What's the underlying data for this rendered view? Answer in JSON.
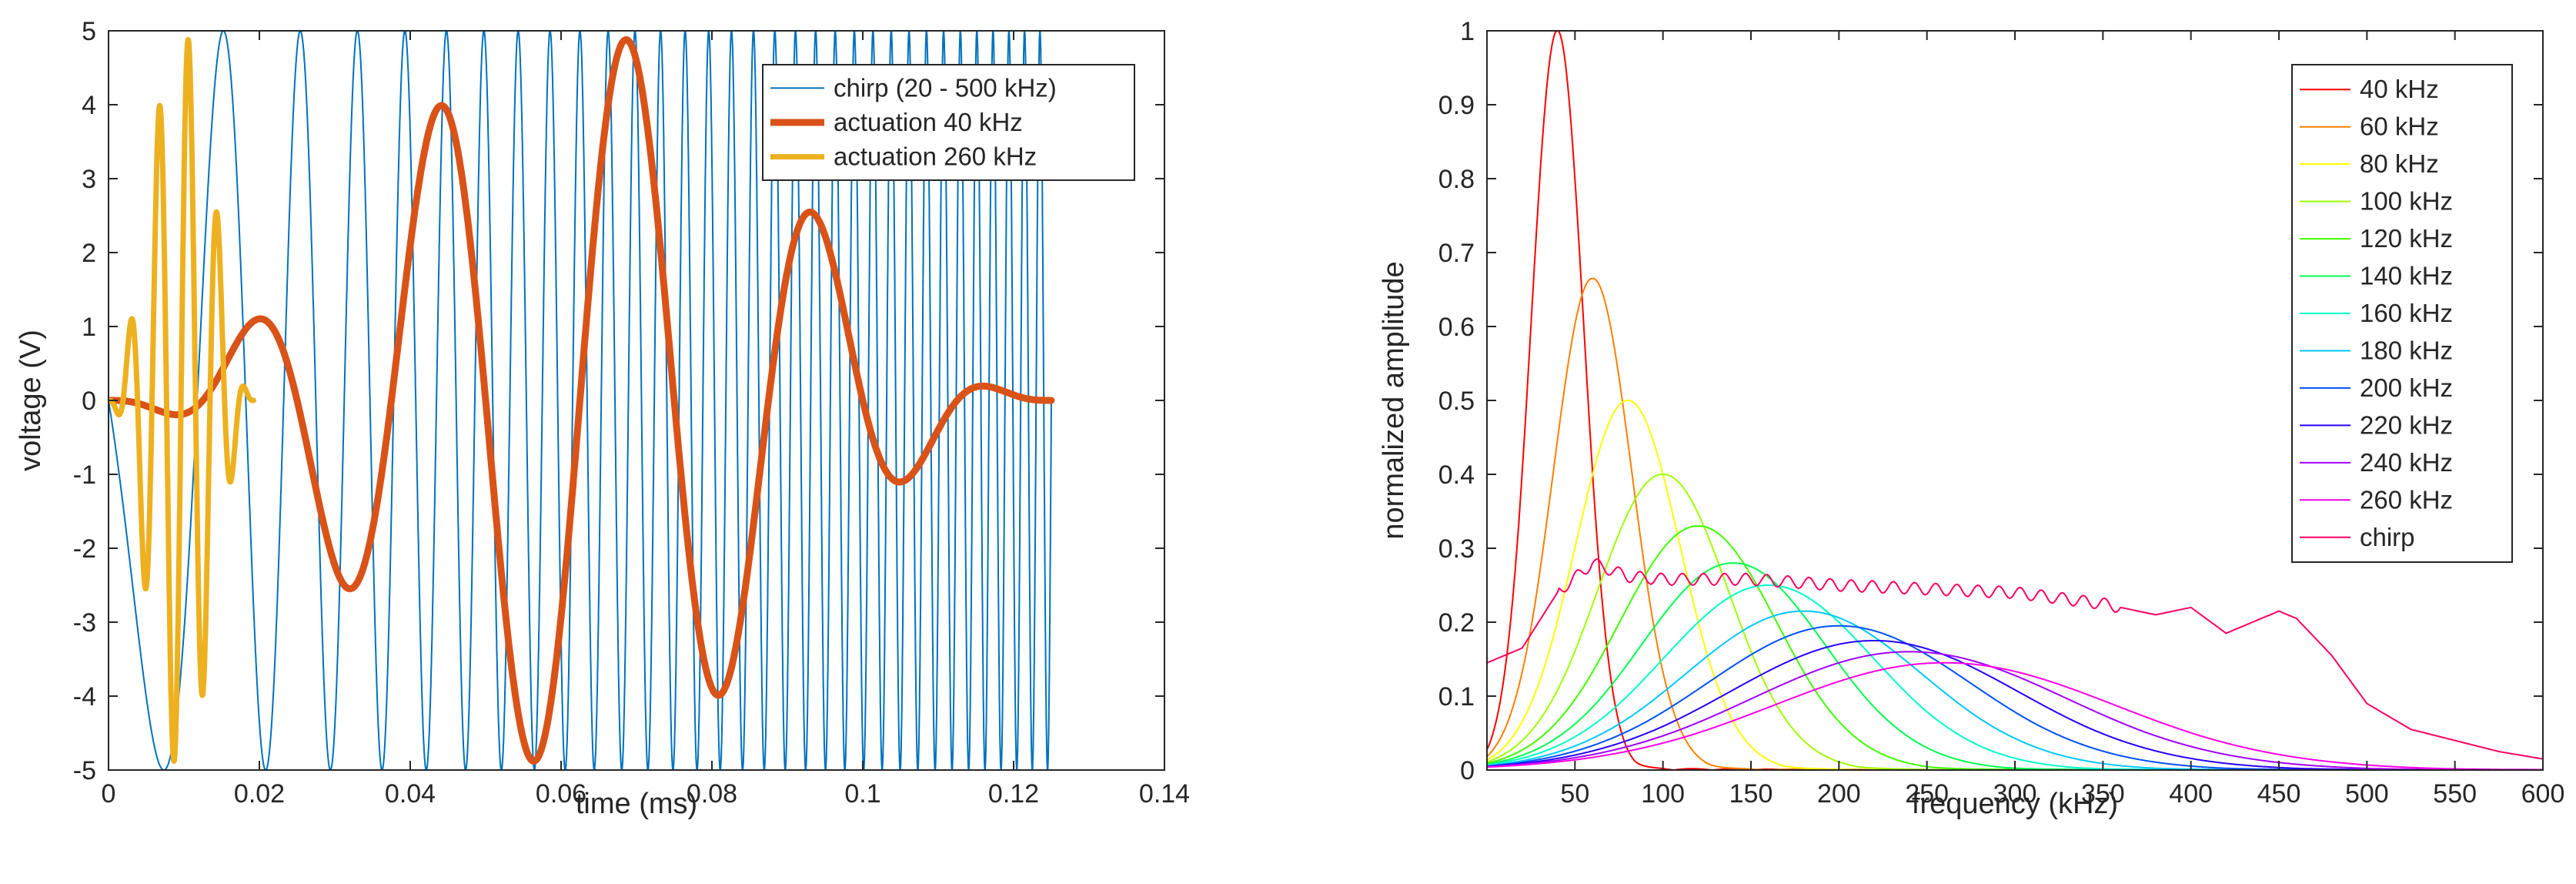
{
  "chart_data": [
    {
      "type": "line",
      "xlabel": "time (ms)",
      "ylabel": "voltage (V)",
      "xlim": [
        0,
        0.14
      ],
      "ylim": [
        -5,
        5
      ],
      "xticks": [
        0,
        0.02,
        0.04,
        0.06,
        0.08,
        0.1,
        0.12,
        0.14
      ],
      "xtick_labels": [
        "0",
        "0.02",
        "0.04",
        "0.06",
        "0.08",
        "0.1",
        "0.12",
        "0.14"
      ],
      "yticks": [
        -5,
        -4,
        -3,
        -2,
        -1,
        0,
        1,
        2,
        3,
        4,
        5
      ],
      "ytick_labels": [
        "-5",
        "-4",
        "-3",
        "-2",
        "-1",
        "0",
        "1",
        "2",
        "3",
        "4",
        "5"
      ],
      "legend_position": "top-right",
      "series": [
        {
          "name": "chirp (20 - 500 kHz)",
          "color": "#0072BD",
          "width": 2,
          "kind": "chirp",
          "f_start_khz": 20,
          "f_end_khz": 500,
          "t_end_ms": 0.125,
          "amplitude": 5
        },
        {
          "name": "actuation 40 kHz",
          "color": "#D95319",
          "width": 9,
          "kind": "burst",
          "freq_khz": 40,
          "cycles": 5,
          "amplitude": 5
        },
        {
          "name": "actuation 260 kHz",
          "color": "#EDB120",
          "width": 7,
          "kind": "burst",
          "freq_khz": 260,
          "cycles": 5,
          "amplitude": 5
        }
      ]
    },
    {
      "type": "line",
      "xlabel": "frequency (kHz)",
      "ylabel": "normalized amplitude",
      "xlim": [
        0,
        600
      ],
      "ylim": [
        0,
        1
      ],
      "xticks": [
        50,
        100,
        150,
        200,
        250,
        300,
        350,
        400,
        450,
        500,
        550,
        600
      ],
      "xtick_labels": [
        "50",
        "100",
        "150",
        "200",
        "250",
        "300",
        "350",
        "400",
        "450",
        "500",
        "550",
        "600"
      ],
      "yticks": [
        0,
        0.1,
        0.2,
        0.3,
        0.4,
        0.5,
        0.6,
        0.7,
        0.8,
        0.9,
        1
      ],
      "ytick_labels": [
        "0",
        "0.1",
        "0.2",
        "0.3",
        "0.4",
        "0.5",
        "0.6",
        "0.7",
        "0.8",
        "0.9",
        "1"
      ],
      "legend_position": "top-right",
      "series": [
        {
          "name": "40 kHz",
          "color": "#FF0000",
          "center_khz": 40,
          "peak": 1.0
        },
        {
          "name": "60 kHz",
          "color": "#FF7F00",
          "center_khz": 60,
          "peak": 0.665
        },
        {
          "name": "80 kHz",
          "color": "#FFFF00",
          "center_khz": 80,
          "peak": 0.5
        },
        {
          "name": "100 kHz",
          "color": "#9FFF00",
          "center_khz": 100,
          "peak": 0.4
        },
        {
          "name": "120 kHz",
          "color": "#3FFF00",
          "center_khz": 120,
          "peak": 0.33
        },
        {
          "name": "140 kHz",
          "color": "#00FF50",
          "center_khz": 140,
          "peak": 0.28
        },
        {
          "name": "160 kHz",
          "color": "#00FFC8",
          "center_khz": 160,
          "peak": 0.25
        },
        {
          "name": "180 kHz",
          "color": "#00C8FF",
          "center_khz": 180,
          "peak": 0.215
        },
        {
          "name": "200 kHz",
          "color": "#0050FF",
          "center_khz": 200,
          "peak": 0.195
        },
        {
          "name": "220 kHz",
          "color": "#2800FF",
          "center_khz": 220,
          "peak": 0.175
        },
        {
          "name": "240 kHz",
          "color": "#A000FF",
          "center_khz": 240,
          "peak": 0.16
        },
        {
          "name": "260 kHz",
          "color": "#FF00E6",
          "center_khz": 260,
          "peak": 0.145
        },
        {
          "name": "chirp",
          "color": "#FF0064",
          "kind": "chirp_spectrum",
          "points": [
            [
              0,
              0.145
            ],
            [
              20,
              0.165
            ],
            [
              40,
              0.24
            ],
            [
              60,
              0.28
            ],
            [
              80,
              0.262
            ],
            [
              100,
              0.258
            ],
            [
              150,
              0.258
            ],
            [
              200,
              0.25
            ],
            [
              250,
              0.245
            ],
            [
              300,
              0.24
            ],
            [
              350,
              0.225
            ],
            [
              380,
              0.21
            ],
            [
              400,
              0.22
            ],
            [
              420,
              0.185
            ],
            [
              440,
              0.205
            ],
            [
              450,
              0.215
            ],
            [
              460,
              0.205
            ],
            [
              480,
              0.155
            ],
            [
              500,
              0.09
            ],
            [
              525,
              0.055
            ],
            [
              550,
              0.04
            ],
            [
              575,
              0.025
            ],
            [
              600,
              0.015
            ]
          ]
        }
      ]
    }
  ]
}
